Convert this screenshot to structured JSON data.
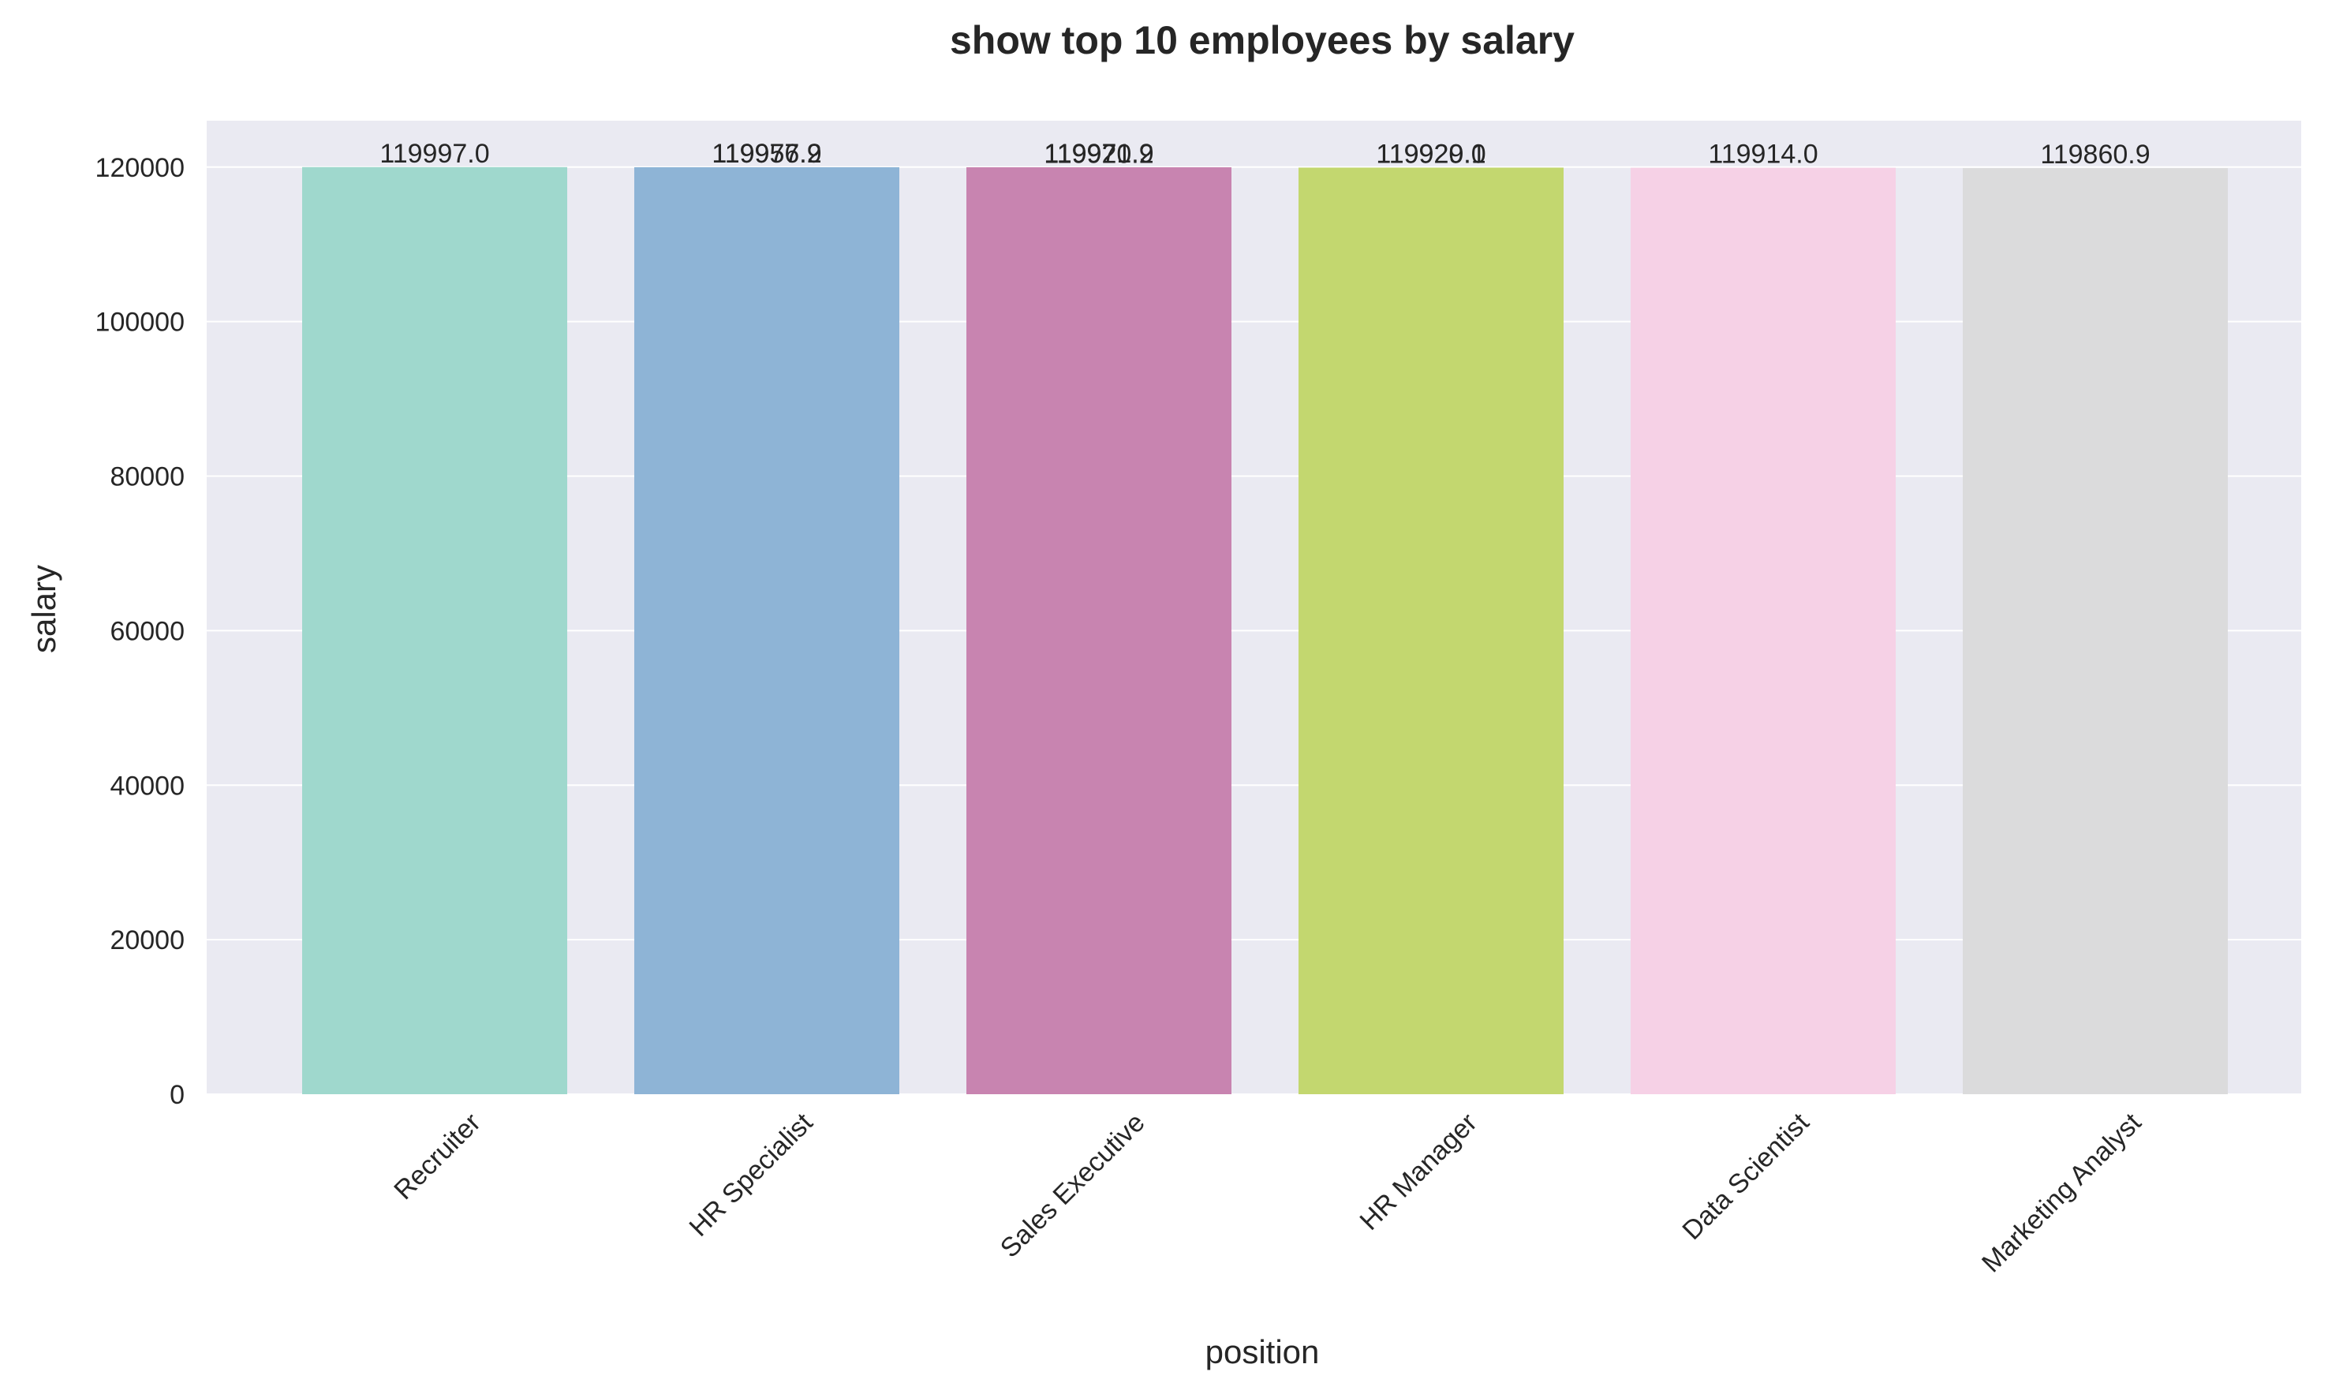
{
  "chart_data": {
    "type": "bar",
    "title": "show top 10 employees by salary",
    "xlabel": "position",
    "ylabel": "salary",
    "ylim": [
      0,
      126000
    ],
    "yticks": [
      0,
      20000,
      40000,
      60000,
      80000,
      100000,
      120000
    ],
    "grid": true,
    "categories": [
      "Recruiter",
      "HR Specialist",
      "Sales Executive",
      "HR Manager",
      "Data Scientist",
      "Marketing Analyst"
    ],
    "colors": [
      "#9fd8cd",
      "#8eb4d6",
      "#c884b0",
      "#c3d76f",
      "#f6d1e6",
      "#dbdbdc"
    ],
    "points": [
      {
        "category": "Recruiter",
        "value": 119997.0,
        "label": "119997.0"
      },
      {
        "category": "HR Specialist",
        "value": 119977.9,
        "label": "119977.9"
      },
      {
        "category": "HR Specialist",
        "value": 119956.2,
        "label": "119956.2"
      },
      {
        "category": "Sales Executive",
        "value": 119971.9,
        "label": "119971.9"
      },
      {
        "category": "Sales Executive",
        "value": 119920.2,
        "label": "119920.2"
      },
      {
        "category": "HR Manager",
        "value": 119929.1,
        "label": "119929.1"
      },
      {
        "category": "HR Manager",
        "value": 119920.0,
        "label": "119920.0"
      },
      {
        "category": "Data Scientist",
        "value": 119914.0,
        "label": "119914.0"
      },
      {
        "category": "Marketing Analyst",
        "value": 119860.9,
        "label": "119860.9"
      }
    ]
  }
}
